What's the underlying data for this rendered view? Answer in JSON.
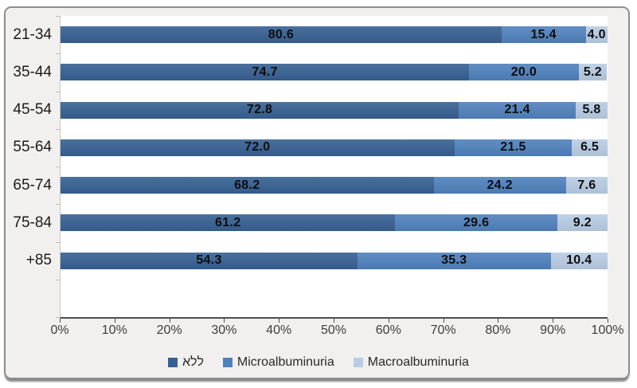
{
  "chart_data": {
    "type": "bar",
    "orientation": "horizontal",
    "stacked": true,
    "title": "",
    "xlabel": "",
    "ylabel": "",
    "grid": false,
    "legend_position": "bottom",
    "categories": [
      "21-34",
      "35-44",
      "45-54",
      "55-64",
      "65-74",
      "75-84",
      "+85"
    ],
    "series": [
      {
        "name": "ללא",
        "color": "#366092",
        "values": [
          "80.6",
          "74.7",
          "72.8",
          "72.0",
          "68.2",
          "61.2",
          "54.3"
        ]
      },
      {
        "name": "Microalbuminuria",
        "color": "#4f81bd",
        "values": [
          "15.4",
          "20.0",
          "21.4",
          "21.5",
          "24.2",
          "29.6",
          "35.3"
        ]
      },
      {
        "name": "Macroalbuminuria",
        "color": "#b8cce4",
        "values": [
          "4.0",
          "5.2",
          "5.8",
          "6.5",
          "7.6",
          "9.2",
          "10.4"
        ]
      }
    ],
    "x_axis": {
      "min": 0,
      "max": 100,
      "ticks": [
        "0%",
        "10%",
        "20%",
        "30%",
        "40%",
        "50%",
        "60%",
        "70%",
        "80%",
        "90%",
        "100%"
      ]
    },
    "value_labels": "centered-inside-segments"
  },
  "frame": {
    "background": "#f1f0ee",
    "border_color": "#8e8e8e"
  }
}
